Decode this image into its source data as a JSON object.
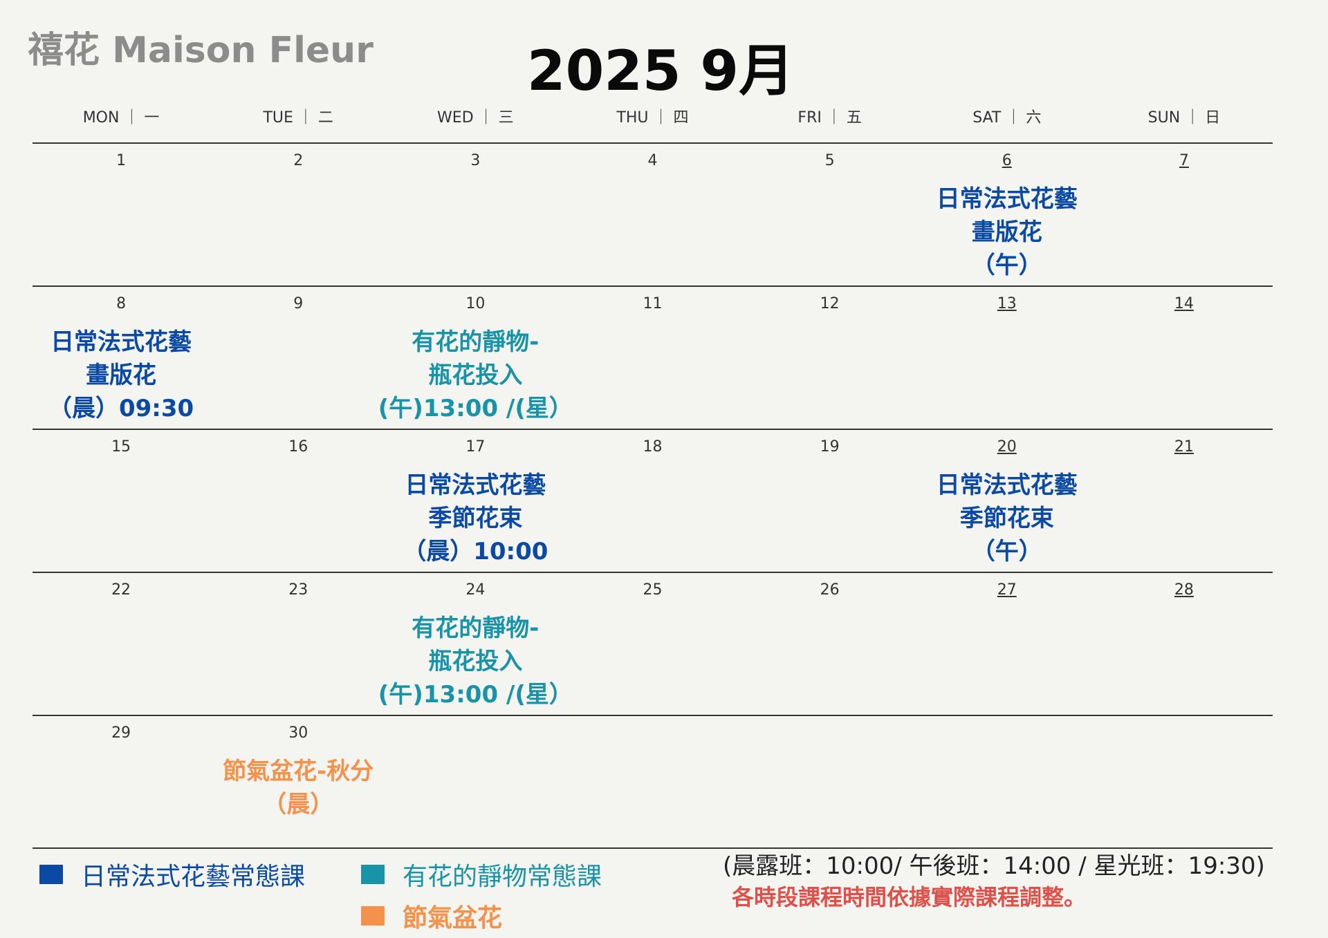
{
  "brand": "禧花 Maison Fleur",
  "title": "2025 9月",
  "weekdays": [
    "MON ｜ 一",
    "TUE ｜ 二",
    "WED ｜ 三",
    "THU ｜ 四",
    "FRI ｜ 五",
    "SAT ｜ 六",
    "SUN ｜ 日"
  ],
  "weeks": [
    {
      "days": [
        "1",
        "2",
        "3",
        "4",
        "5",
        "6",
        "7"
      ],
      "events": [
        {
          "col": 5,
          "type": "blue",
          "lines": [
            "日常法式花藝",
            "畫版花",
            "（午）"
          ]
        }
      ]
    },
    {
      "days": [
        "8",
        "9",
        "10",
        "11",
        "12",
        "13",
        "14"
      ],
      "events": [
        {
          "col": 0,
          "type": "blue",
          "lines": [
            "日常法式花藝",
            "畫版花",
            "（晨）09:30"
          ]
        },
        {
          "col": 2,
          "type": "teal",
          "lines": [
            "有花的靜物-",
            "瓶花投入",
            "(午)13:00 /(星）"
          ]
        }
      ]
    },
    {
      "days": [
        "15",
        "16",
        "17",
        "18",
        "19",
        "20",
        "21"
      ],
      "events": [
        {
          "col": 2,
          "type": "blue",
          "lines": [
            "日常法式花藝",
            "季節花束",
            "（晨）10:00"
          ]
        },
        {
          "col": 5,
          "type": "blue",
          "lines": [
            "日常法式花藝",
            "季節花束",
            "（午）"
          ]
        }
      ]
    },
    {
      "days": [
        "22",
        "23",
        "24",
        "25",
        "26",
        "27",
        "28"
      ],
      "events": [
        {
          "col": 2,
          "type": "teal",
          "lines": [
            "有花的靜物-",
            "瓶花投入",
            "(午)13:00 /(星）"
          ]
        }
      ]
    },
    {
      "days": [
        "29",
        "30",
        "",
        "",
        "",
        "",
        ""
      ],
      "events": [
        {
          "col": 1,
          "type": "orange",
          "lines": [
            "節氣盆花-秋分",
            "（晨）"
          ]
        }
      ]
    }
  ],
  "legend": [
    {
      "label": "日常法式花藝常態課",
      "color": "#0a4aa4"
    },
    {
      "label": "有花的靜物常態課",
      "color": "#1893a8"
    },
    {
      "label": "節氣盆花",
      "color": "#f4924c"
    }
  ],
  "notes": {
    "times": "(晨露班：10:00/  午後班：14:00 / 星光班：19:30)",
    "disclaimer": "各時段課程時間依據實際課程調整。"
  },
  "colors": {
    "blue": "#0a4aa4",
    "teal": "#1893a8",
    "orange": "#f4924c",
    "note_red": "#e0504a",
    "background": "#f4f4f0"
  }
}
